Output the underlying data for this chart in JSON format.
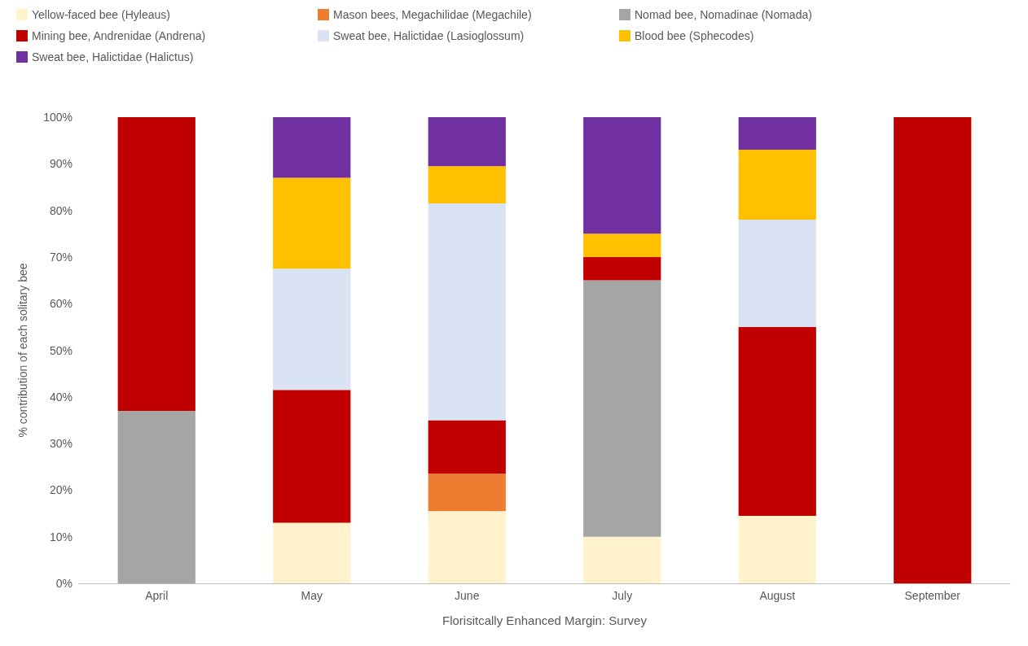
{
  "chart_data": {
    "type": "bar",
    "stacked": true,
    "xlabel": "Florisitcally Enhanced Margin: Survey",
    "ylabel": "% contribution of each solitary bee",
    "categories": [
      "April",
      "May",
      "June",
      "July",
      "August",
      "September"
    ],
    "series": [
      {
        "name": "Yellow-faced bee (Hyleaus)",
        "color": "#fff2cc",
        "values": [
          null,
          13,
          15.5,
          10,
          14.5,
          null
        ]
      },
      {
        "name": "Mason bees, Megachilidae (Megachile)",
        "color": "#ed7d31",
        "values": [
          null,
          null,
          8,
          null,
          null,
          null
        ]
      },
      {
        "name": "Nomad bee, Nomadinae (Nomada)",
        "color": "#a5a5a5",
        "values": [
          37,
          null,
          null,
          55,
          null,
          null
        ]
      },
      {
        "name": "Mining bee, Andrenidae (Andrena)",
        "color": "#c00000",
        "values": [
          63,
          28.5,
          11.5,
          5,
          40.5,
          100
        ]
      },
      {
        "name": "Sweat bee, Halictidae (Lasioglossum)",
        "color": "#dae3f3",
        "values": [
          null,
          26,
          46.5,
          null,
          23,
          null
        ]
      },
      {
        "name": "Blood bee (Sphecodes)",
        "color": "#ffc000",
        "values": [
          null,
          19.5,
          8,
          5,
          15,
          null
        ]
      },
      {
        "name": "Sweat bee, Halictidae (Halictus)",
        "color": "#7030a0",
        "values": [
          null,
          13,
          10.5,
          25,
          7,
          null
        ]
      }
    ],
    "ylim": [
      0,
      100
    ],
    "yticks": [
      {
        "value": 0,
        "label": "0%"
      },
      {
        "value": 10,
        "label": "10%"
      },
      {
        "value": 20,
        "label": "20%"
      },
      {
        "value": 30,
        "label": "30%"
      },
      {
        "value": 40,
        "label": "40%"
      },
      {
        "value": 50,
        "label": "50%"
      },
      {
        "value": 60,
        "label": "60%"
      },
      {
        "value": 70,
        "label": "70%"
      },
      {
        "value": 80,
        "label": "80%"
      },
      {
        "value": 90,
        "label": "90%"
      },
      {
        "value": 100,
        "label": "100%"
      }
    ],
    "grid": false,
    "legend": "top"
  }
}
